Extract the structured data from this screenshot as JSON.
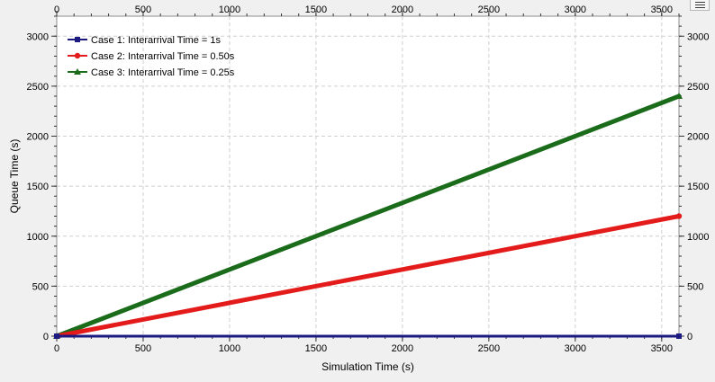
{
  "chart_data": {
    "type": "line",
    "title": "",
    "xlabel": "Simulation Time (s)",
    "ylabel": "Queue Time (s)",
    "xlim": [
      0,
      3600
    ],
    "ylim": [
      0,
      3200
    ],
    "x_ticks": [
      0,
      500,
      1000,
      1500,
      2000,
      2500,
      3000,
      3500
    ],
    "y_ticks": [
      0,
      500,
      1000,
      1500,
      2000,
      2500,
      3000
    ],
    "grid": true,
    "legend_position": "top-left",
    "series": [
      {
        "name": "Case 1:  Interarrival Time = 1s",
        "color": "#1a1a80",
        "marker": "square",
        "x": [
          0,
          3600
        ],
        "y": [
          0,
          0
        ]
      },
      {
        "name": "Case 2:  Interarrival Time = 0.50s",
        "color": "#e31b1b",
        "marker": "circle",
        "x": [
          0,
          3600
        ],
        "y": [
          0,
          1200
        ]
      },
      {
        "name": "Case 3:  Interarrival Time = 0.25s",
        "color": "#1a6b1a",
        "marker": "triangle",
        "x": [
          0,
          3600
        ],
        "y": [
          0,
          2400
        ]
      }
    ]
  },
  "icons": {
    "menu": "list-menu-icon"
  }
}
